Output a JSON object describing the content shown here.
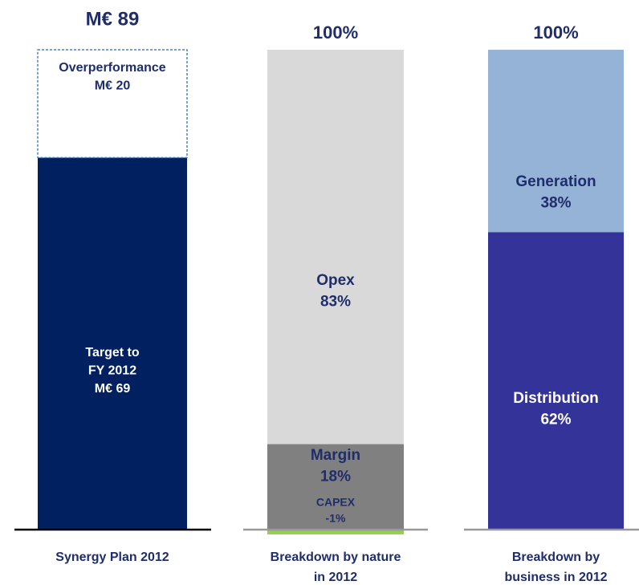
{
  "chart_data": [
    {
      "type": "stacked_bar",
      "total": 89,
      "total_label": "M€ 89",
      "xlabel": [
        "Synergy Plan 2012"
      ],
      "ylim": [
        0,
        89
      ],
      "series": [
        {
          "name": [
            "Target to",
            "FY 2012"
          ],
          "color": "#002060",
          "values": [
            69
          ],
          "value_labels": [
            "M€ 69"
          ]
        },
        {
          "name": [
            "Overperformance"
          ],
          "color": "#ffffff",
          "values": [
            20
          ],
          "value_labels": [
            "M€ 20"
          ]
        }
      ]
    },
    {
      "type": "stacked_bar",
      "total": 100,
      "total_label": "100%",
      "xlabel": [
        "Breakdown  by nature",
        "in 2012"
      ],
      "ylim": [
        -1,
        101
      ],
      "series": [
        {
          "name": [
            "Margin"
          ],
          "color": "#808080",
          "values": [
            18
          ],
          "value_labels": [
            "18%"
          ]
        },
        {
          "name": [
            "Opex"
          ],
          "color": "#d9d9d9",
          "values": [
            83
          ],
          "value_labels": [
            "83%"
          ]
        },
        {
          "name": [
            "CAPEX"
          ],
          "color": "#92d050",
          "values": [
            -1
          ],
          "value_labels": [
            "-1%"
          ]
        }
      ]
    },
    {
      "type": "stacked_bar",
      "total": 100,
      "total_label": "100%",
      "xlabel": [
        "Breakdown  by",
        "business in 2012"
      ],
      "ylim": [
        0,
        100
      ],
      "series": [
        {
          "name": [
            "Distribution"
          ],
          "color": "#333399",
          "values": [
            62
          ],
          "value_labels": [
            "62%"
          ]
        },
        {
          "name": [
            "Generation"
          ],
          "color": "#95b3d7",
          "values": [
            38
          ],
          "value_labels": [
            "38%"
          ]
        }
      ]
    }
  ]
}
